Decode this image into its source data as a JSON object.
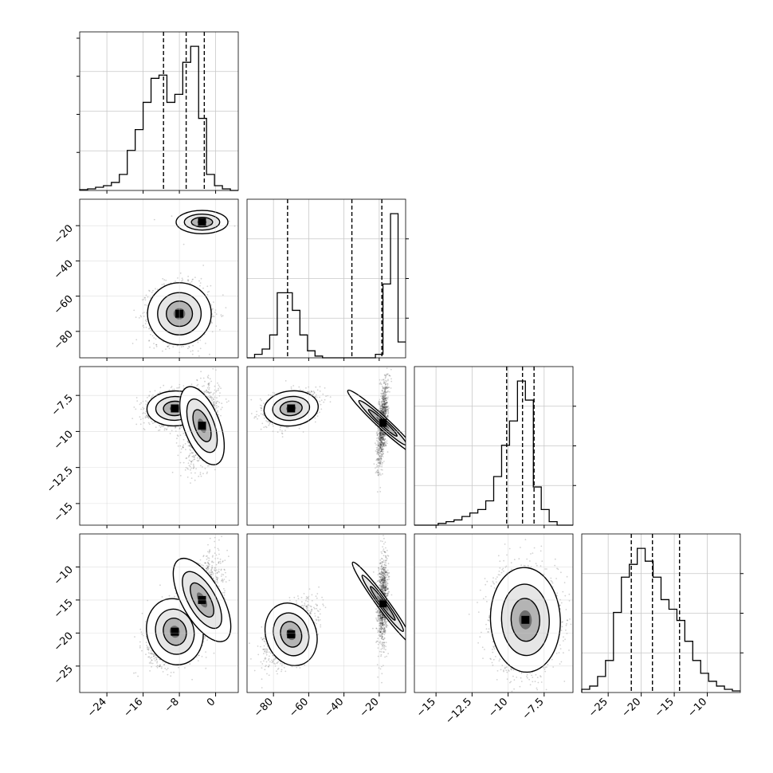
{
  "chart_data": {
    "type": "corner",
    "params": [
      {
        "name": "",
        "range": [
          -30,
          5
        ],
        "ticks": [
          -24,
          -16,
          -8,
          0
        ],
        "quantiles": [
          -11.5,
          -6.5,
          -2.5
        ],
        "hist": [
          0.5,
          1,
          2,
          3,
          5,
          10,
          25,
          38,
          55,
          70,
          72,
          55,
          60,
          80,
          90,
          45,
          10,
          3,
          1,
          0
        ]
      },
      {
        "name": "",
        "range": [
          -95,
          -5
        ],
        "ticks": [
          -80,
          -60,
          -40,
          -20
        ],
        "quantiles": [
          -72,
          -35.5,
          -18.5
        ],
        "hist": [
          0,
          2,
          5,
          13,
          37,
          37,
          27,
          13,
          4,
          1,
          0,
          0,
          0,
          0,
          0,
          0,
          0,
          2,
          42,
          82,
          9
        ]
      },
      {
        "name": "",
        "range": [
          -16.5,
          -5.5
        ],
        "ticks": [
          -15.0,
          -12.5,
          -10.0,
          -7.5
        ],
        "quantiles": [
          -10.1,
          -9.0,
          -8.2
        ],
        "hist": [
          0,
          0,
          0,
          1,
          2,
          3,
          5,
          7,
          9,
          14,
          28,
          46,
          60,
          83,
          72,
          22,
          9,
          2,
          0,
          0
        ]
      },
      {
        "name": "",
        "range": [
          -29,
          -5
        ],
        "ticks": [
          -25,
          -20,
          -15,
          -10
        ],
        "quantiles": [
          -21.5,
          -18.3,
          -14.2
        ],
        "hist": [
          2,
          4,
          10,
          20,
          50,
          72,
          80,
          90,
          82,
          72,
          58,
          52,
          45,
          32,
          20,
          12,
          7,
          4,
          2,
          1
        ]
      }
    ],
    "pairs": [
      {
        "x": 0,
        "y": 1,
        "blobs": [
          {
            "mx": -3,
            "my": -18,
            "sx": 2.6,
            "sy": 3,
            "rho": 0,
            "w": 0.45,
            "n": 180
          },
          {
            "mx": -8,
            "my": -70,
            "sx": 3.2,
            "sy": 8,
            "rho": 0,
            "w": 0.55,
            "n": 1700
          }
        ]
      },
      {
        "x": 0,
        "y": 2,
        "blobs": [
          {
            "mx": -9,
            "my": -8.4,
            "sx": 2.8,
            "sy": 0.55,
            "rho": 0.1,
            "w": 0.55,
            "n": 1700
          },
          {
            "mx": -3,
            "my": -9.6,
            "sx": 1.8,
            "sy": 1.3,
            "rho": 0.3,
            "w": 0.45,
            "n": 1200
          }
        ]
      },
      {
        "x": 1,
        "y": 2,
        "blobs": [
          {
            "mx": -70,
            "my": -8.4,
            "sx": 7,
            "sy": 0.55,
            "rho": 0.3,
            "w": 0.55,
            "n": 1500
          },
          {
            "mx": -18,
            "my": -9.4,
            "sx": 1.5,
            "sy": 1.5,
            "rho": 0.6,
            "w": 0.45,
            "n": 1100
          }
        ]
      },
      {
        "x": 0,
        "y": 3,
        "blobs": [
          {
            "mx": -9,
            "my": -19.8,
            "sx": 2.8,
            "sy": 2.3,
            "rho": 0.4,
            "w": 0.55,
            "n": 1700
          },
          {
            "mx": -3,
            "my": -15,
            "sx": 2,
            "sy": 3.2,
            "rho": 0.5,
            "w": 0.45,
            "n": 1300
          }
        ]
      },
      {
        "x": 1,
        "y": 3,
        "blobs": [
          {
            "mx": -70,
            "my": -20.2,
            "sx": 6.5,
            "sy": 2.2,
            "rho": 0.5,
            "w": 0.55,
            "n": 1500
          },
          {
            "mx": -18,
            "my": -15.5,
            "sx": 1.5,
            "sy": 3.5,
            "rho": 0.2,
            "w": 0.45,
            "n": 1100
          }
        ]
      },
      {
        "x": 2,
        "y": 3,
        "blobs": [
          {
            "mx": -8.8,
            "my": -18,
            "sx": 1.1,
            "sy": 3.6,
            "rho": 0.05,
            "w": 1,
            "n": 2600
          }
        ]
      }
    ],
    "grid": true
  }
}
